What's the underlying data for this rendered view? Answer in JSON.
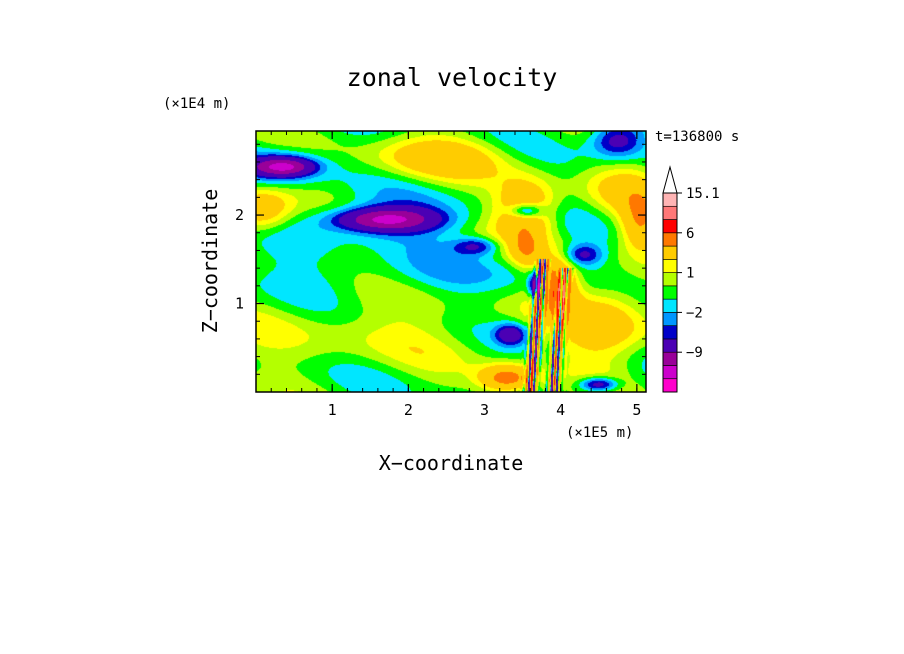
{
  "chart_data": {
    "type": "heatmap",
    "title": "zonal velocity",
    "time_label": "t=136800 s",
    "xlabel": "X−coordinate",
    "ylabel": "Z−coordinate",
    "x_scale_label": "(×1E5 m)",
    "y_scale_label": "(×1E4 m)",
    "x_range": [
      0,
      5.12
    ],
    "y_range": [
      0,
      2.95
    ],
    "x_ticks": [
      1,
      2,
      3,
      4,
      5
    ],
    "x_tick_labels": [
      "1",
      "2",
      "3",
      "4",
      "5"
    ],
    "y_ticks": [
      1,
      2
    ],
    "y_tick_labels": [
      "1",
      "2"
    ],
    "colorbar": {
      "levels": [
        -15,
        -12,
        -9,
        -6,
        -3,
        -2,
        -1,
        0,
        1,
        2,
        3,
        6,
        9,
        12,
        15.1
      ],
      "colors": [
        "#ff00cc",
        "#cc00cc",
        "#990099",
        "#4b00b4",
        "#0000c8",
        "#0096ff",
        "#00e6ff",
        "#00ff00",
        "#b4ff00",
        "#ffff00",
        "#ffcc00",
        "#ff7800",
        "#ff0000",
        "#ff7878",
        "#ffb4b4"
      ],
      "tick_labels": [
        {
          "level": 15.1,
          "text": "15.1"
        },
        {
          "level": 6,
          "text": "6"
        },
        {
          "level": 1,
          "text": "1"
        },
        {
          "level": -2,
          "text": "−2"
        },
        {
          "level": -9,
          "text": "−9"
        }
      ],
      "extend": "max"
    },
    "features": [
      {
        "x": 0.35,
        "z": 2.55,
        "value": -7,
        "wx": 0.35,
        "wz": 0.09
      },
      {
        "x": 0.35,
        "z": 2.55,
        "value": -4,
        "wx": 0.55,
        "wz": 0.18
      },
      {
        "x": 0.05,
        "z": 2.05,
        "value": 5,
        "wx": 0.4,
        "wz": 0.25
      },
      {
        "x": 1.7,
        "z": 1.95,
        "value": -8,
        "wx": 0.6,
        "wz": 0.12
      },
      {
        "x": 1.7,
        "z": 1.95,
        "value": -3,
        "wx": 0.95,
        "wz": 0.22
      },
      {
        "x": 2.9,
        "z": 1.65,
        "value": -4,
        "wx": 0.3,
        "wz": 0.1
      },
      {
        "x": 2.4,
        "z": 2.65,
        "value": 4,
        "wx": 0.9,
        "wz": 0.25
      },
      {
        "x": 3.55,
        "z": 2.05,
        "value": 6,
        "wx": 0.4,
        "wz": 0.35
      },
      {
        "x": 3.55,
        "z": 2.05,
        "value": -6,
        "wx": 0.22,
        "wz": 0.09
      },
      {
        "x": 3.55,
        "z": 1.6,
        "value": 4,
        "wx": 0.2,
        "wz": 0.2
      },
      {
        "x": 3.7,
        "z": 1.2,
        "value": -10,
        "wx": 0.1,
        "wz": 0.15
      },
      {
        "x": 3.95,
        "z": 1.2,
        "value": 8,
        "wx": 0.25,
        "wz": 0.3
      },
      {
        "x": 4.6,
        "z": 0.8,
        "value": 4,
        "wx": 0.6,
        "wz": 0.5
      },
      {
        "x": 3.35,
        "z": 0.65,
        "value": -5,
        "wx": 0.2,
        "wz": 0.12
      },
      {
        "x": 4.3,
        "z": 1.55,
        "value": -4,
        "wx": 0.25,
        "wz": 0.12
      },
      {
        "x": 4.75,
        "z": 2.85,
        "value": -5,
        "wx": 0.35,
        "wz": 0.2
      },
      {
        "x": 5.05,
        "z": 1.9,
        "value": 5,
        "wx": 0.25,
        "wz": 0.3
      },
      {
        "x": 3.3,
        "z": 0.15,
        "value": 7,
        "wx": 0.35,
        "wz": 0.15
      },
      {
        "x": 4.5,
        "z": 0.08,
        "value": -6,
        "wx": 0.25,
        "wz": 0.08
      },
      {
        "x": 2.2,
        "z": 1.3,
        "value": -1.2,
        "wx": 2.5,
        "wz": 0.25
      },
      {
        "x": 1.5,
        "z": 0.7,
        "value": 1.5,
        "wx": 2.2,
        "wz": 0.5
      },
      {
        "x": 4.9,
        "z": 2.3,
        "value": 3,
        "wx": 0.5,
        "wz": 0.3
      }
    ],
    "waves": [
      {
        "x": 3.6,
        "z_min": 0.0,
        "z_max": 1.5,
        "amplitude": 9
      },
      {
        "x": 3.9,
        "z_min": 0.0,
        "z_max": 1.4,
        "amplitude": 8
      }
    ],
    "grid": false,
    "legend": "right"
  }
}
